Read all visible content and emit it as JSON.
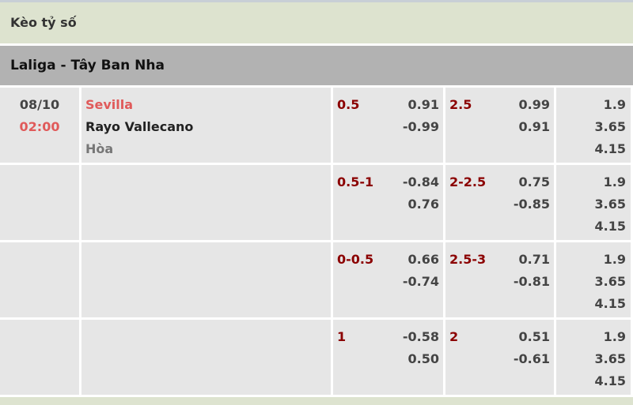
{
  "title": "Kèo tỷ số",
  "league": "Laliga - Tây Ban Nha",
  "match": {
    "date": "08/10",
    "time": "02:00",
    "home": "Sevilla",
    "away": "Rayo Vallecano",
    "draw": "Hòa"
  },
  "rows": [
    {
      "hcap": "0.5",
      "hcap_odds": [
        "0.91",
        "-0.99"
      ],
      "ou": "2.5",
      "ou_odds": [
        "0.99",
        "0.91"
      ],
      "x12": [
        "1.9",
        "3.65",
        "4.15"
      ]
    },
    {
      "hcap": "0.5-1",
      "hcap_odds": [
        "-0.84",
        "0.76"
      ],
      "ou": "2-2.5",
      "ou_odds": [
        "0.75",
        "-0.85"
      ],
      "x12": [
        "1.9",
        "3.65",
        "4.15"
      ]
    },
    {
      "hcap": "0-0.5",
      "hcap_odds": [
        "0.66",
        "-0.74"
      ],
      "ou": "2.5-3",
      "ou_odds": [
        "0.71",
        "-0.81"
      ],
      "x12": [
        "1.9",
        "3.65",
        "4.15"
      ]
    },
    {
      "hcap": "1",
      "hcap_odds": [
        "-0.58",
        "0.50"
      ],
      "ou": "2",
      "ou_odds": [
        "0.51",
        "-0.61"
      ],
      "x12": [
        "1.9",
        "3.65",
        "4.15"
      ]
    }
  ]
}
